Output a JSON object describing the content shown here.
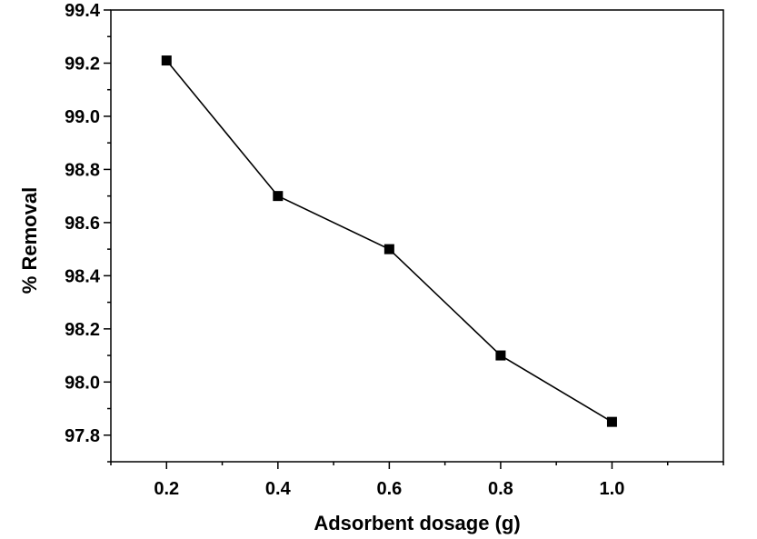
{
  "chart_data": {
    "type": "line",
    "title": "",
    "xlabel": "Adsorbent dosage (g)",
    "ylabel": "% Removal",
    "xlim": [
      0.1,
      1.2
    ],
    "ylim": [
      97.7,
      99.4
    ],
    "x_ticks": [
      "0.2",
      "0.4",
      "0.6",
      "0.8",
      "1.0"
    ],
    "y_ticks": [
      "97.8",
      "98.0",
      "98.2",
      "98.4",
      "98.6",
      "98.8",
      "99.0",
      "99.2",
      "99.4"
    ],
    "series": [
      {
        "name": "% Removal",
        "marker": "square",
        "color": "#000000",
        "x": [
          0.2,
          0.4,
          0.6,
          0.8,
          1.0
        ],
        "y": [
          99.21,
          98.7,
          98.5,
          98.1,
          97.85
        ]
      }
    ],
    "grid": false,
    "legend": "none"
  }
}
